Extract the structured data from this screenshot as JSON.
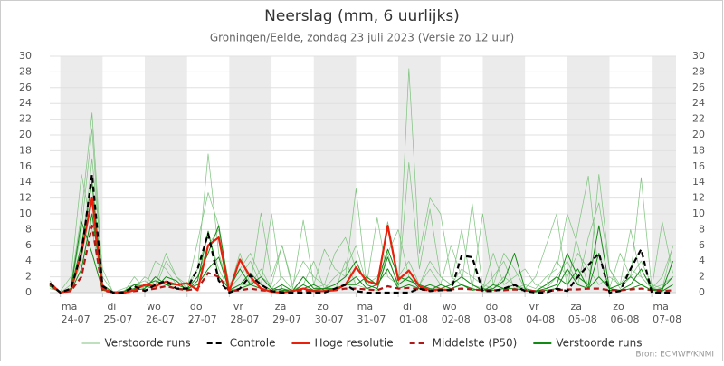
{
  "chart_data": {
    "type": "line",
    "title": "Neerslag (mm, 6 uurlijks)",
    "subtitle": "Groningen/Eelde, zondag 23 juli 2023 (Versie zo 12 uur)",
    "source": "Bron: ECMWF/KNMI",
    "categories": [
      null,
      "24-07",
      null,
      null,
      null,
      "25-07",
      null,
      null,
      null,
      "26-07",
      null,
      null,
      null,
      "27-07",
      null,
      null,
      null,
      "28-07",
      null,
      null,
      null,
      "29-07",
      null,
      null,
      null,
      "30-07",
      null,
      null,
      null,
      "31-07",
      null,
      null,
      null,
      "01-08",
      null,
      null,
      null,
      "02-08",
      null,
      null,
      null,
      "03-08",
      null,
      null,
      null,
      "04-08",
      null,
      null,
      null,
      "05-08",
      null,
      null,
      null,
      "06-08",
      null,
      null,
      null,
      "07-08",
      null,
      null
    ],
    "weekdays": [
      null,
      "ma",
      null,
      null,
      null,
      "di",
      null,
      null,
      null,
      "wo",
      null,
      null,
      null,
      "do",
      null,
      null,
      null,
      "vr",
      null,
      null,
      null,
      "za",
      null,
      null,
      null,
      "zo",
      null,
      null,
      null,
      "ma",
      null,
      null,
      null,
      "di",
      null,
      null,
      null,
      "wo",
      null,
      null,
      null,
      "do",
      null,
      null,
      null,
      "vr",
      null,
      null,
      null,
      "za",
      null,
      null,
      null,
      "zo",
      null,
      null,
      null,
      "ma",
      null,
      null
    ],
    "ylim": [
      0,
      30
    ],
    "yticks": [
      0,
      2,
      4,
      6,
      8,
      10,
      12,
      14,
      16,
      18,
      20,
      22,
      24,
      26,
      28,
      30
    ],
    "grid": true,
    "series": [
      {
        "name": "Verstoorde runs",
        "color": "#7cc27c",
        "members": [
          [
            1.5,
            0,
            1,
            10,
            22.8,
            2,
            0,
            0.2,
            1,
            0.5,
            2,
            1,
            0.5,
            0.3,
            3,
            17.6,
            5,
            0.5,
            2,
            4,
            1,
            10,
            0.5,
            0.3,
            2,
            0.5,
            1,
            0.2,
            4,
            1,
            0.5,
            0.3,
            5,
            0.5,
            28.4,
            5,
            12,
            10,
            2,
            1,
            11.3,
            0.5,
            2,
            4,
            0.5,
            1,
            0.5,
            2,
            3,
            10,
            6,
            0.5,
            15,
            3,
            0.5,
            2,
            14.6,
            0.5,
            9,
            2.5
          ],
          [
            1,
            0,
            0.5,
            8,
            20.8,
            1,
            0,
            0,
            0.5,
            2,
            1,
            5,
            2,
            0.5,
            6.5,
            12.7,
            8.5,
            0.3,
            5,
            1,
            10.1,
            2,
            6,
            0.5,
            9.2,
            1,
            5.5,
            3,
            2,
            13.2,
            1,
            9.5,
            2,
            1,
            16.5,
            3,
            10.6,
            2,
            1,
            8,
            0.5,
            10,
            1,
            5,
            3,
            0.5,
            2,
            6,
            10,
            0.5,
            8,
            14.8,
            2,
            0.5,
            5,
            2,
            4,
            1,
            0.5,
            6
          ],
          [
            0.5,
            0.2,
            2,
            15,
            8,
            0.5,
            0.2,
            0,
            2,
            0.5,
            4,
            3,
            1,
            0.5,
            2,
            6,
            8,
            1,
            3,
            5,
            2,
            1,
            6,
            1,
            4,
            2,
            1,
            5,
            7,
            3,
            2,
            1,
            9,
            2,
            4,
            1,
            3,
            1,
            6,
            2,
            1,
            0.5,
            5,
            1,
            2,
            3,
            1,
            0.5,
            2,
            4,
            1,
            7,
            11.4,
            3,
            1,
            8,
            2,
            0.5,
            2,
            5.8
          ],
          [
            1,
            0,
            0.3,
            4,
            17,
            3,
            0,
            0.5,
            1,
            1.5,
            0.5,
            4,
            2,
            1,
            3,
            7.5,
            3,
            0.2,
            1,
            1,
            3,
            0.5,
            2,
            0.3,
            1,
            4,
            0.5,
            2,
            3,
            6,
            1,
            2,
            5,
            8,
            2,
            1,
            4,
            2,
            1,
            3,
            2,
            1,
            0.5,
            2,
            1,
            0.5,
            0.2,
            1,
            4,
            2,
            5,
            3,
            1,
            2,
            1,
            3,
            2,
            0.5,
            1,
            2
          ]
        ]
      },
      {
        "name": "Controle",
        "color": "#000000",
        "dashed": true,
        "values": [
          1.2,
          0,
          0.5,
          5,
          15,
          0.8,
          0,
          0,
          0.8,
          0.2,
          1,
          1.5,
          0.5,
          0.5,
          3,
          7.5,
          1.5,
          0,
          0.5,
          2.2,
          1,
          0.2,
          0,
          0,
          0,
          0,
          0,
          0.5,
          1,
          0.2,
          0,
          0,
          0,
          0,
          0,
          0.5,
          0.2,
          0.3,
          0.3,
          4.7,
          4.5,
          0.2,
          0.2,
          0.5,
          1,
          0.2,
          0,
          0,
          0.5,
          0.2,
          2,
          3.5,
          5,
          0,
          0.2,
          3,
          5.5,
          0,
          0,
          0
        ]
      },
      {
        "name": "Hoge resolutie",
        "color": "#e8200c",
        "values": [
          1.2,
          0,
          0.3,
          5,
          12,
          0.5,
          0,
          0,
          0.3,
          1,
          0.8,
          1.4,
          1,
          1.2,
          0.3,
          6,
          7,
          0.2,
          4.2,
          2,
          0.5,
          0.1,
          0,
          0.2,
          0.5,
          0.2,
          0.2,
          0.3,
          1,
          3.2,
          1.5,
          1,
          8.5,
          1.6,
          2.8,
          0.8,
          0.3,
          0.4,
          0.3,
          null,
          null,
          null,
          null,
          null,
          null,
          null,
          null,
          null,
          null,
          null,
          null,
          null,
          null,
          null,
          null,
          null,
          null,
          null,
          null,
          null
        ]
      },
      {
        "name": "Middelste (P50)",
        "color": "#b01818",
        "dashed": true,
        "values": [
          1,
          0,
          0.2,
          2,
          8.5,
          0.3,
          0,
          0,
          0.2,
          0.3,
          0.5,
          0.8,
          0.5,
          0.3,
          0.5,
          2.5,
          2,
          0.2,
          0.3,
          0.5,
          0.3,
          0.2,
          0.1,
          0.2,
          0.3,
          0.2,
          0.2,
          0.3,
          0.5,
          0.5,
          0.4,
          0.3,
          0.8,
          0.5,
          0.6,
          0.4,
          0.3,
          0.3,
          0.4,
          0.5,
          0.4,
          0.3,
          0.3,
          0.3,
          0.4,
          0.3,
          0.2,
          0.2,
          0.3,
          0.4,
          0.4,
          0.5,
          0.5,
          0.3,
          0.3,
          0.4,
          0.5,
          0.3,
          0.2,
          0.3
        ]
      },
      {
        "name": "Verstoorde runs",
        "color": "#138a13",
        "members": [
          [
            1,
            0,
            0.5,
            6,
            14,
            1,
            0,
            0.2,
            0.5,
            1,
            1.5,
            1,
            1,
            0.5,
            2,
            5,
            8.5,
            0.3,
            1,
            2.5,
            1,
            0.3,
            1,
            0.2,
            2,
            0.5,
            0.5,
            1,
            2,
            4,
            1,
            0.5,
            4.5,
            1,
            2,
            0.5,
            1,
            0.5,
            1,
            2,
            1,
            0.3,
            0.5,
            1.5,
            5,
            0.5,
            0.2,
            0.5,
            1,
            5,
            2,
            1,
            8.5,
            0.5,
            0.3,
            1,
            3,
            0.5,
            0.3,
            4
          ],
          [
            0.8,
            0,
            0.2,
            3,
            10,
            0.5,
            0,
            0,
            0.3,
            0.5,
            2,
            1,
            0.5,
            0.5,
            1,
            3,
            4.5,
            0.2,
            0.5,
            1,
            2,
            0.5,
            0.3,
            0.2,
            0.5,
            1,
            0.3,
            0.5,
            1,
            1,
            2,
            1,
            3,
            0.5,
            1,
            0.5,
            0.3,
            1,
            0.5,
            1,
            0.5,
            0.2,
            1,
            0.5,
            0.5,
            0.3,
            0.2,
            1,
            2,
            1,
            3,
            0.5,
            2,
            0.5,
            1,
            2,
            1,
            0.3,
            0.5,
            2
          ],
          [
            1.2,
            0,
            0.5,
            9,
            5,
            0.3,
            0,
            0.1,
            1,
            0.8,
            0.5,
            2,
            1.5,
            0.3,
            1.5,
            7.8,
            2,
            0.5,
            3,
            1,
            0.5,
            0.2,
            0.5,
            0.1,
            1,
            0.3,
            0.5,
            0.5,
            1,
            2,
            0.5,
            1,
            5.5,
            2,
            1.5,
            1,
            0.5,
            0.3,
            0.5,
            1,
            0.3,
            0.5,
            0.3,
            0.5,
            1,
            0.2,
            0.1,
            0.3,
            0.5,
            3,
            1,
            0.5,
            5,
            0.3,
            0.2,
            0.5,
            1,
            0.3,
            0.2,
            1
          ]
        ]
      }
    ]
  }
}
